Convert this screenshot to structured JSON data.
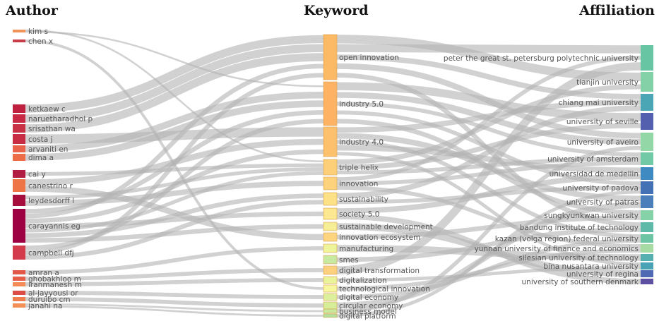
{
  "titles": {
    "author": "Author",
    "keyword": "Keyword",
    "affiliation": "Affiliation"
  },
  "authors": [
    {
      "name": "kim s",
      "color": "#f0945a"
    },
    {
      "name": "chen x",
      "color": "#c83c4a"
    },
    {
      "name": "ketkaew c",
      "color": "#c0203f"
    },
    {
      "name": "naruetharadhol p",
      "color": "#c82a45"
    },
    {
      "name": "srisathan wa",
      "color": "#c83045"
    },
    {
      "name": "costa j",
      "color": "#c72c44"
    },
    {
      "name": "arvaniti en",
      "color": "#e8634a"
    },
    {
      "name": "dima a",
      "color": "#ec6d48"
    },
    {
      "name": "cai y",
      "color": "#b01c42"
    },
    {
      "name": "canestrino r",
      "color": "#ee7646"
    },
    {
      "name": "leydesdorff l",
      "color": "#a60e3e"
    },
    {
      "name": "carayannis eg",
      "color": "#9e0142"
    },
    {
      "name": "campbell dfj",
      "color": "#d33c4c"
    },
    {
      "name": "amran a",
      "color": "#e3574a"
    },
    {
      "name": "ghobakhloo m",
      "color": "#e55e4a"
    },
    {
      "name": "iranmanesh m",
      "color": "#f48a55"
    },
    {
      "name": "al-jayyousi or",
      "color": "#dd4d48"
    },
    {
      "name": "duruibo cm",
      "color": "#f07d4e"
    },
    {
      "name": "janahi na",
      "color": "#f39058"
    }
  ],
  "keywords": [
    {
      "name": "open innovation",
      "color": "#fdba66"
    },
    {
      "name": "industry 5.0",
      "color": "#fdb264"
    },
    {
      "name": "industry 4.0",
      "color": "#fdc06c"
    },
    {
      "name": "triple helix",
      "color": "#fdcf78"
    },
    {
      "name": "innovation",
      "color": "#fdd27c"
    },
    {
      "name": "sustainability",
      "color": "#fde187"
    },
    {
      "name": "society 5.0",
      "color": "#fbe890"
    },
    {
      "name": "sustainable development",
      "color": "#f5ee96"
    },
    {
      "name": "innovation ecosystem",
      "color": "#fdd580"
    },
    {
      "name": "manufacturing",
      "color": "#eef49a"
    },
    {
      "name": "smes",
      "color": "#c7e9a0"
    },
    {
      "name": "digital transformation",
      "color": "#fdd07e"
    },
    {
      "name": "digitalization",
      "color": "#e8f39a"
    },
    {
      "name": "technological innovation",
      "color": "#f6f79e"
    },
    {
      "name": "digital economy",
      "color": "#dcef9c"
    },
    {
      "name": "circular economy",
      "color": "#d6ee9a"
    },
    {
      "name": "business model",
      "color": "#c9e89e"
    },
    {
      "name": "digital platform",
      "color": "#b4e09e"
    }
  ],
  "affiliations": [
    {
      "name": "peter the great st. petersburg polytechnic university",
      "color": "#67c5a4"
    },
    {
      "name": "tianjin university",
      "color": "#84d1a8"
    },
    {
      "name": "chiang mai university",
      "color": "#4aa6b4"
    },
    {
      "name": "university of seville",
      "color": "#5360ad"
    },
    {
      "name": "university of aveiro",
      "color": "#93d7a6"
    },
    {
      "name": "university of amsterdam",
      "color": "#72c9a6"
    },
    {
      "name": "universidad de medellin",
      "color": "#3f8ac0"
    },
    {
      "name": "university of padova",
      "color": "#4470b4"
    },
    {
      "name": "university of patras",
      "color": "#4a7fbc"
    },
    {
      "name": "sungkyunkwan university",
      "color": "#86d2a8"
    },
    {
      "name": "bandung institute of technology",
      "color": "#5eb9a8"
    },
    {
      "name": "kazan (volga region) federal university",
      "color": "#6dc4a4"
    },
    {
      "name": "yunnan university of finance and economics",
      "color": "#a6dba4"
    },
    {
      "name": "silesian university of technology",
      "color": "#56b0b0"
    },
    {
      "name": "bina nusantara university",
      "color": "#49a3b4"
    },
    {
      "name": "university of regina",
      "color": "#4f6ab2"
    },
    {
      "name": "university of southern denmark",
      "color": "#5e4fa2"
    }
  ],
  "flows_ak": [
    [
      0,
      3
    ],
    [
      0,
      1
    ],
    [
      1,
      13
    ],
    [
      2,
      0
    ],
    [
      3,
      0
    ],
    [
      4,
      0
    ],
    [
      5,
      2
    ],
    [
      6,
      1
    ],
    [
      7,
      1
    ],
    [
      8,
      3
    ],
    [
      9,
      2
    ],
    [
      9,
      8
    ],
    [
      10,
      3
    ],
    [
      10,
      4
    ],
    [
      11,
      1
    ],
    [
      11,
      0
    ],
    [
      11,
      2
    ],
    [
      11,
      6
    ],
    [
      11,
      3
    ],
    [
      11,
      5
    ],
    [
      11,
      7
    ],
    [
      12,
      1
    ],
    [
      12,
      0
    ],
    [
      12,
      5
    ],
    [
      13,
      9
    ],
    [
      14,
      11
    ],
    [
      15,
      12
    ],
    [
      16,
      14
    ],
    [
      17,
      15
    ],
    [
      18,
      16
    ],
    [
      18,
      17
    ]
  ],
  "flows_ka": [
    [
      0,
      1
    ],
    [
      0,
      0
    ],
    [
      0,
      2
    ],
    [
      0,
      4
    ],
    [
      0,
      10
    ],
    [
      1,
      3
    ],
    [
      1,
      4
    ],
    [
      1,
      5
    ],
    [
      1,
      7
    ],
    [
      1,
      9
    ],
    [
      2,
      2
    ],
    [
      2,
      8
    ],
    [
      2,
      11
    ],
    [
      2,
      6
    ],
    [
      2,
      14
    ],
    [
      3,
      1
    ],
    [
      3,
      3
    ],
    [
      3,
      5
    ],
    [
      4,
      0
    ],
    [
      4,
      5
    ],
    [
      4,
      12
    ],
    [
      5,
      2
    ],
    [
      5,
      7
    ],
    [
      6,
      6
    ],
    [
      6,
      16
    ],
    [
      7,
      15
    ],
    [
      8,
      9
    ],
    [
      9,
      13
    ],
    [
      10,
      10
    ],
    [
      11,
      0
    ],
    [
      12,
      14
    ],
    [
      13,
      12
    ],
    [
      14,
      11
    ],
    [
      15,
      8
    ],
    [
      16,
      4
    ],
    [
      17,
      7
    ]
  ]
}
